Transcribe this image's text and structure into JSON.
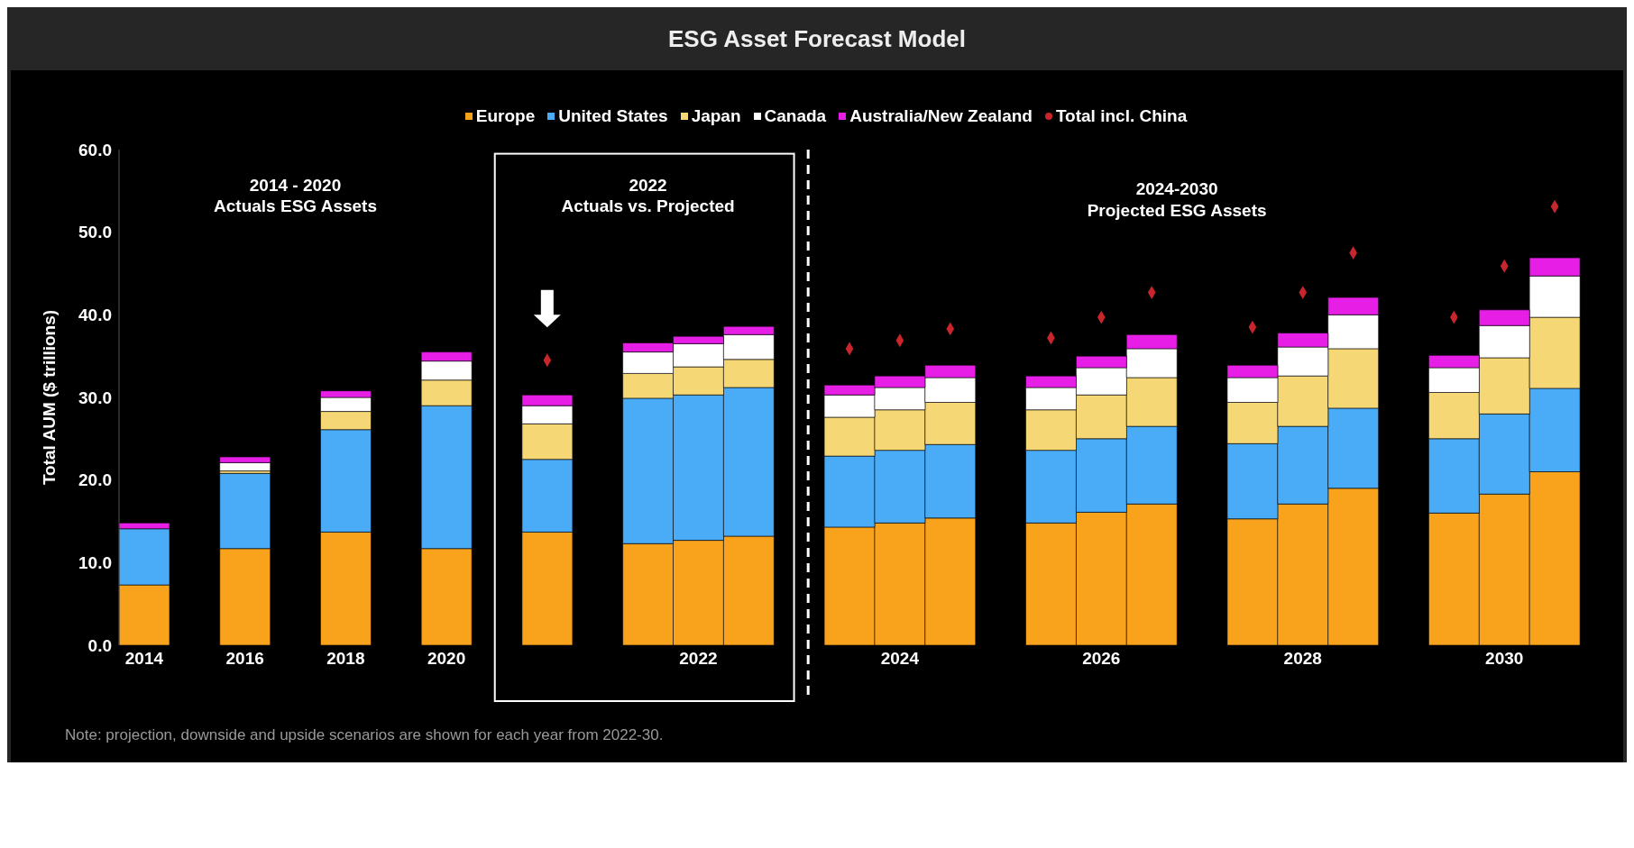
{
  "chart_data": {
    "type": "bar",
    "title": "ESG Asset Forecast Model",
    "ylabel": "Total AUM ($ trillions)",
    "stacked": true,
    "legend": "top",
    "grid": false,
    "marker": "diamond",
    "categories": [
      "2014",
      null,
      "2016",
      null,
      "2018",
      null,
      "2020",
      null,
      null,
      null,
      null,
      "2022",
      null,
      null,
      null,
      "2024",
      null,
      null,
      null,
      "2026",
      null,
      null,
      null,
      "2028",
      null,
      null,
      null,
      "2030",
      null
    ],
    "ylim": [
      0,
      60
    ],
    "yticks": [
      {
        "value": 0,
        "label": "0.0"
      },
      {
        "value": 10,
        "label": "10.0"
      },
      {
        "value": 20,
        "label": "20.0"
      },
      {
        "value": 30,
        "label": "30.0"
      },
      {
        "value": 40,
        "label": "40.0"
      },
      {
        "value": 50,
        "label": "50.0"
      },
      {
        "value": 60,
        "label": "60.0"
      }
    ],
    "series": [
      {
        "name": "Europe",
        "color": "#f9a21b",
        "values": [
          7.3,
          null,
          11.7,
          null,
          13.7,
          null,
          11.7,
          null,
          13.7,
          null,
          12.3,
          12.7,
          13.2,
          null,
          14.3,
          14.8,
          15.4,
          null,
          14.8,
          16.1,
          17.1,
          null,
          15.3,
          17.1,
          19.0,
          null,
          16.0,
          18.3,
          21.0
        ]
      },
      {
        "name": "United States",
        "color": "#4aabf7",
        "values": [
          6.8,
          null,
          9.1,
          null,
          12.4,
          null,
          17.3,
          null,
          8.8,
          null,
          17.6,
          17.6,
          18.0,
          null,
          8.6,
          8.8,
          8.9,
          null,
          8.8,
          8.9,
          9.4,
          null,
          9.1,
          9.4,
          9.7,
          null,
          9.0,
          9.7,
          10.1
        ]
      },
      {
        "name": "Japan",
        "color": "#f6d775",
        "values": [
          0,
          null,
          0.3,
          null,
          2.2,
          null,
          3.1,
          null,
          4.3,
          null,
          3.0,
          3.4,
          3.4,
          null,
          4.7,
          4.9,
          5.1,
          null,
          4.9,
          5.3,
          5.9,
          null,
          5.0,
          6.1,
          7.2,
          null,
          5.6,
          6.8,
          8.6
        ]
      },
      {
        "name": "Canada",
        "color": "#ffffff",
        "values": [
          0,
          null,
          1.0,
          null,
          1.7,
          null,
          2.3,
          null,
          2.2,
          null,
          2.6,
          2.8,
          3.0,
          null,
          2.7,
          2.7,
          3.0,
          null,
          2.7,
          3.3,
          3.5,
          null,
          3.0,
          3.5,
          4.1,
          null,
          3.0,
          3.9,
          5.0
        ]
      },
      {
        "name": "Australia/New Zealand",
        "color": "#e61ee6",
        "values": [
          0.7,
          null,
          0.7,
          null,
          0.8,
          null,
          1.1,
          null,
          1.3,
          null,
          1.1,
          0.9,
          1.0,
          null,
          1.2,
          1.4,
          1.5,
          null,
          1.4,
          1.4,
          1.7,
          null,
          1.5,
          1.7,
          2.1,
          null,
          1.5,
          1.9,
          2.2
        ]
      },
      {
        "name": "Total incl. China",
        "type": "scatter",
        "color": "#c8262c",
        "values": [
          null,
          null,
          null,
          null,
          null,
          null,
          null,
          null,
          34.5,
          null,
          null,
          null,
          null,
          null,
          35.9,
          36.9,
          38.3,
          null,
          37.2,
          39.7,
          42.7,
          null,
          38.5,
          42.7,
          47.5,
          null,
          39.7,
          45.9,
          53.1
        ]
      }
    ],
    "annotations": [
      "2014 - 2020\nActuals ESG Assets",
      "2022\nActuals vs. Projected",
      "2024-2030\nProjected ESG Assets",
      "Note: projection, downside and upside scenarios are shown for each year from 2022-30."
    ]
  }
}
